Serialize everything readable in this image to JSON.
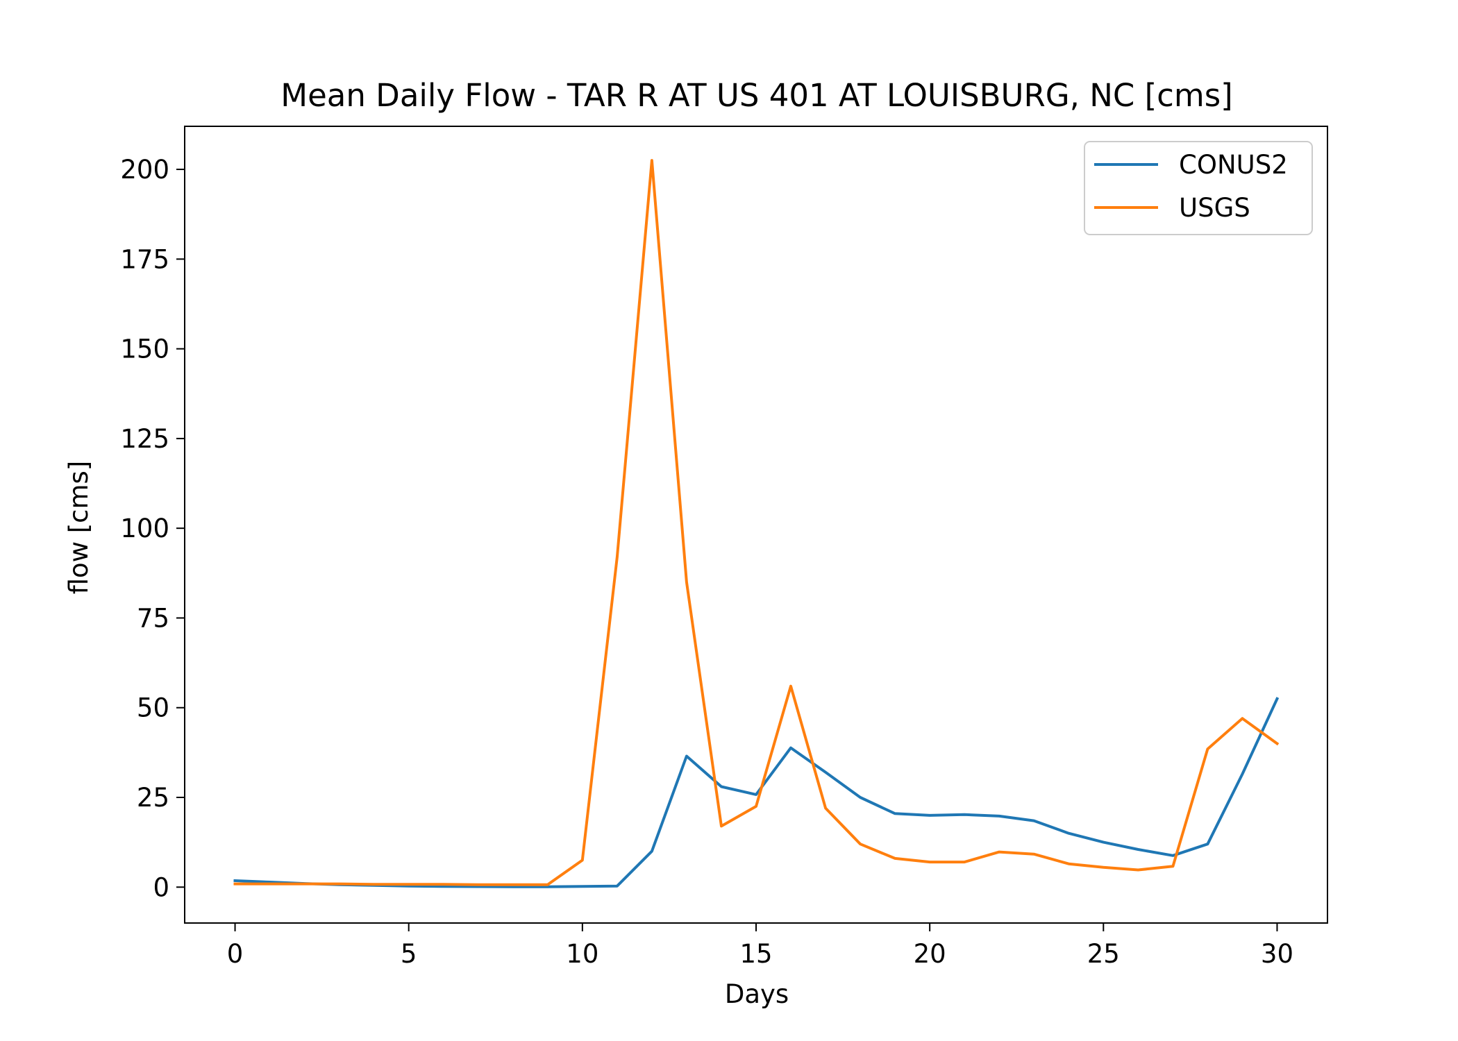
{
  "chart_data": {
    "type": "line",
    "title": "Mean Daily Flow - TAR R AT US 401 AT LOUISBURG, NC [cms]",
    "xlabel": "Days",
    "ylabel": "flow [cms]",
    "xlim": [
      -1.45,
      31.45
    ],
    "ylim": [
      -10,
      212
    ],
    "xticks": [
      0,
      5,
      10,
      15,
      20,
      25,
      30
    ],
    "yticks": [
      0,
      25,
      50,
      75,
      100,
      125,
      150,
      175,
      200
    ],
    "grid": false,
    "legend_position": "top-right",
    "x": [
      0,
      1,
      2,
      3,
      4,
      5,
      6,
      7,
      8,
      9,
      10,
      11,
      12,
      13,
      14,
      15,
      16,
      17,
      18,
      19,
      20,
      21,
      22,
      23,
      24,
      25,
      26,
      27,
      28,
      29,
      30
    ],
    "series": [
      {
        "name": "CONUS2",
        "color": "#1f77b4",
        "values": [
          1.8,
          1.4,
          1.0,
          0.7,
          0.5,
          0.3,
          0.2,
          0.15,
          0.1,
          0.1,
          0.2,
          0.3,
          10.0,
          36.5,
          28.0,
          25.8,
          38.8,
          32.0,
          25.0,
          20.5,
          20.0,
          20.2,
          19.8,
          18.5,
          15.0,
          12.5,
          10.5,
          8.8,
          12.0,
          31.5,
          52.5
        ]
      },
      {
        "name": "USGS",
        "color": "#ff7f0e",
        "values": [
          0.9,
          0.9,
          0.9,
          0.9,
          0.8,
          0.8,
          0.8,
          0.7,
          0.7,
          0.7,
          7.5,
          92.0,
          202.5,
          85.0,
          17.0,
          22.5,
          56.0,
          22.0,
          12.0,
          8.0,
          7.0,
          7.0,
          9.8,
          9.2,
          6.5,
          5.5,
          4.8,
          5.8,
          38.5,
          47.0,
          40.0
        ]
      }
    ]
  }
}
